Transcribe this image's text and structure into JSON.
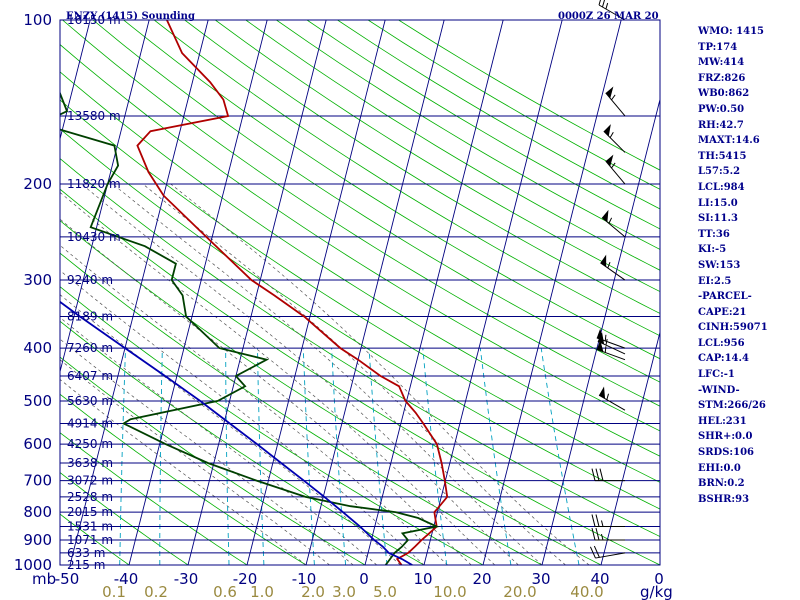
{
  "header": {
    "station": "ENZY (1415) Sounding",
    "datetime": "0000Z 26 MAR 20"
  },
  "axes": {
    "pressure_ticks": [
      "100",
      "200",
      "300",
      "400",
      "500",
      "600",
      "700",
      "800",
      "900",
      "1000"
    ],
    "pressure_unit": "mb",
    "temperature_ticks": [
      "-50",
      "-40",
      "-30",
      "-20",
      "-10",
      "0",
      "10",
      "20",
      "30",
      "40",
      "0"
    ],
    "mixing_ratio_ticks": [
      "0.1",
      "0.2",
      "0.6",
      "1.0",
      "2.0",
      "3.0",
      "5.0",
      "10.0",
      "20.0",
      "40.0"
    ],
    "mixing_ratio_unit": "g/kg"
  },
  "colors": {
    "isobar": "#000080",
    "isotherm": "#000080",
    "dry_adiabat": "#00b000",
    "mixing_ratio": "#00a0c0",
    "moist_adiabat": "#555555",
    "temperature": "#b00000",
    "dewpoint": "#004000",
    "parcel": "#0000b0"
  },
  "indices": [
    "WMO: 1415",
    "TP:174",
    "MW:414",
    "FRZ:826",
    "WB0:862",
    "PW:0.50",
    "RH:42.7",
    "MAXT:14.6",
    "TH:5415",
    "L57:5.2",
    "LCL:984",
    "LI:15.0",
    "SI:11.3",
    "TT:36",
    "KI:-5",
    "SW:153",
    "EI:2.5",
    "-PARCEL-",
    "CAPE:21",
    "CINH:59071",
    "LCL:956",
    "CAP:14.4",
    "LFC:-1",
    "-WIND-",
    "STM:266/26",
    "HEL:231",
    "SHR+:0.0",
    "SRDS:106",
    "EHI:0.0",
    "BRN:0.2",
    "BSHR:93"
  ],
  "chart_data": {
    "type": "line",
    "title": "ENZY (1415) Sounding",
    "xlabel": "",
    "ylabel": "mb",
    "x_unit": "degC",
    "y_scale": "log",
    "ylim": [
      1000,
      100
    ],
    "xlim": [
      -50,
      50
    ],
    "height_levels": [
      {
        "p": 100,
        "label": "16150 m"
      },
      {
        "p": 150,
        "label": "13580 m"
      },
      {
        "p": 200,
        "label": "11820 m"
      },
      {
        "p": 250,
        "label": "10430 m"
      },
      {
        "p": 300,
        "label": "9240 m"
      },
      {
        "p": 350,
        "label": "8189 m"
      },
      {
        "p": 400,
        "label": "7260 m"
      },
      {
        "p": 450,
        "label": "6407 m"
      },
      {
        "p": 500,
        "label": "5630 m"
      },
      {
        "p": 550,
        "label": "4914 m"
      },
      {
        "p": 600,
        "label": "4250 m"
      },
      {
        "p": 650,
        "label": "3638 m"
      },
      {
        "p": 700,
        "label": "3072 m"
      },
      {
        "p": 750,
        "label": "2528 m"
      },
      {
        "p": 800,
        "label": "2015 m"
      },
      {
        "p": 850,
        "label": "1531 m"
      },
      {
        "p": 900,
        "label": "1071 m"
      },
      {
        "p": 950,
        "label": "633 m"
      },
      {
        "p": 1000,
        "label": "215 m"
      }
    ],
    "series": [
      {
        "name": "temperature",
        "points": [
          [
            1000,
            6.2
          ],
          [
            975,
            5.2
          ],
          [
            950,
            6.8
          ],
          [
            925,
            7.7
          ],
          [
            900,
            8.5
          ],
          [
            875,
            9.5
          ],
          [
            850,
            10.5
          ],
          [
            825,
            10.0
          ],
          [
            800,
            9.5
          ],
          [
            780,
            10.1
          ],
          [
            750,
            11.0
          ],
          [
            700,
            9.9
          ],
          [
            650,
            8.6
          ],
          [
            600,
            7.0
          ],
          [
            550,
            3.8
          ],
          [
            525,
            2.0
          ],
          [
            500,
            -0.2
          ],
          [
            470,
            -1.9
          ],
          [
            450,
            -5.5
          ],
          [
            420,
            -10.0
          ],
          [
            400,
            -13.5
          ],
          [
            350,
            -21.0
          ],
          [
            320,
            -27.0
          ],
          [
            300,
            -31.5
          ],
          [
            250,
            -41.0
          ],
          [
            210,
            -50.0
          ],
          [
            190,
            -53.6
          ],
          [
            170,
            -56.6
          ],
          [
            160,
            -55.0
          ],
          [
            150,
            -42.5
          ],
          [
            140,
            -44.0
          ],
          [
            130,
            -47.0
          ],
          [
            115,
            -53.0
          ],
          [
            100,
            -57.0
          ]
        ]
      },
      {
        "name": "dewpoint",
        "points": [
          [
            1000,
            3.5
          ],
          [
            975,
            4.0
          ],
          [
            950,
            4.5
          ],
          [
            925,
            5.5
          ],
          [
            900,
            6.2
          ],
          [
            875,
            5.0
          ],
          [
            850,
            10.5
          ],
          [
            820,
            7.0
          ],
          [
            800,
            3.0
          ],
          [
            780,
            -5.0
          ],
          [
            750,
            -13.0
          ],
          [
            700,
            -22.0
          ],
          [
            650,
            -31.0
          ],
          [
            600,
            -39.0
          ],
          [
            550,
            -47.0
          ],
          [
            540,
            -46.0
          ],
          [
            500,
            -32.0
          ],
          [
            470,
            -28.0
          ],
          [
            450,
            -30.0
          ],
          [
            420,
            -25.5
          ],
          [
            400,
            -34.0
          ],
          [
            350,
            -41.0
          ],
          [
            320,
            -42.5
          ],
          [
            300,
            -45.0
          ],
          [
            280,
            -45.0
          ],
          [
            260,
            -51.0
          ],
          [
            240,
            -61.0
          ],
          [
            200,
            -60.0
          ],
          [
            185,
            -59.0
          ],
          [
            170,
            -60.5
          ],
          [
            155,
            -74.0
          ],
          [
            147,
            -70.0
          ],
          [
            100,
            -80.0
          ]
        ]
      },
      {
        "name": "parcel",
        "points": [
          [
            1000,
            8.0
          ],
          [
            975,
            6.0
          ],
          [
            950,
            3.5
          ],
          [
            925,
            2.2
          ],
          [
            900,
            0.5
          ],
          [
            850,
            -2.5
          ],
          [
            800,
            -6.0
          ],
          [
            750,
            -9.8
          ],
          [
            700,
            -14.0
          ],
          [
            650,
            -18.6
          ],
          [
            600,
            -23.5
          ],
          [
            550,
            -29.0
          ],
          [
            500,
            -35.0
          ],
          [
            450,
            -42.0
          ],
          [
            400,
            -50.0
          ],
          [
            350,
            -59.0
          ],
          [
            300,
            -69.0
          ],
          [
            250,
            -80.0
          ],
          [
            200,
            -93.0
          ],
          [
            150,
            -108.0
          ],
          [
            120,
            -120.0
          ],
          [
            110,
            -126.0
          ]
        ]
      }
    ],
    "wind_barbs": [
      {
        "p": 100,
        "dir": 300,
        "speed": 25
      },
      {
        "p": 150,
        "dir": 320,
        "speed": 55
      },
      {
        "p": 175,
        "dir": 315,
        "speed": 55
      },
      {
        "p": 200,
        "dir": 320,
        "speed": 55
      },
      {
        "p": 250,
        "dir": 310,
        "speed": 55
      },
      {
        "p": 300,
        "dir": 305,
        "speed": 55
      },
      {
        "p": 400,
        "dir": 290,
        "speed": 55
      },
      {
        "p": 410,
        "dir": 295,
        "speed": 55
      },
      {
        "p": 420,
        "dir": 290,
        "speed": 55
      },
      {
        "p": 520,
        "dir": 300,
        "speed": 55
      },
      {
        "p": 700,
        "dir": 270,
        "speed": 30
      },
      {
        "p": 850,
        "dir": 270,
        "speed": 25
      },
      {
        "p": 900,
        "dir": 270,
        "speed": 25
      },
      {
        "p": 950,
        "dir": 260,
        "speed": 20
      }
    ]
  }
}
